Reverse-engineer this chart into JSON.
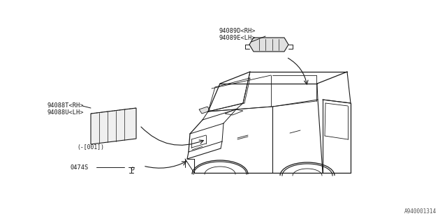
{
  "bg_color": "#ffffff",
  "line_color": "#1a1a1a",
  "fig_width": 6.4,
  "fig_height": 3.2,
  "dpi": 100,
  "diagram_ref": "A940001314",
  "labels": {
    "part1_line1": "94088T<RH>",
    "part1_line2": "94088U<LH>",
    "part1_sub": "(-[001])",
    "part2": "0474S",
    "part3_line1": "94089D<RH>",
    "part3_line2": "94089E<LH>"
  }
}
